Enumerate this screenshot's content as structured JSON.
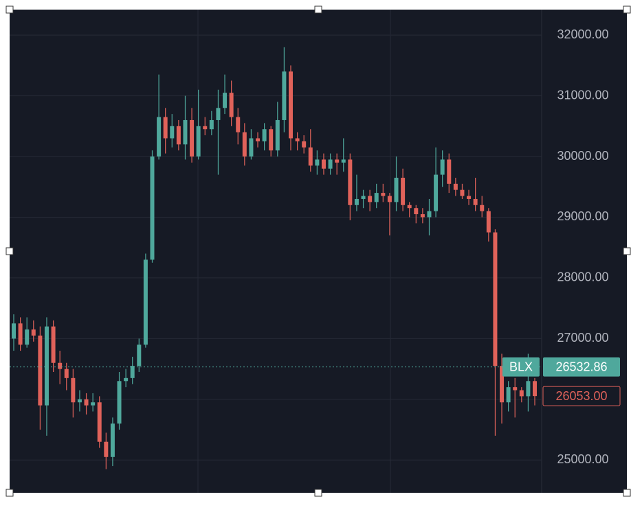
{
  "chart_data": {
    "type": "candlestick",
    "open": [
      27000,
      27250,
      26900,
      27150,
      27050,
      25900,
      27200,
      26600,
      26500,
      26350,
      25950,
      26000,
      25900,
      25950,
      25300,
      25050,
      25600,
      26300,
      26350,
      26550,
      26900,
      28300,
      30000,
      30650,
      30300,
      30500,
      30200,
      30600,
      30000,
      30500,
      30450,
      30600,
      30800,
      31050,
      30650,
      30400,
      30000,
      30300,
      30250,
      30450,
      30100,
      30600,
      31400,
      30300,
      30250,
      30150,
      29850,
      29950,
      29800,
      29950,
      29900,
      29950,
      29200,
      29300,
      29350,
      29250,
      29400,
      29350,
      29250,
      29650,
      29200,
      29150,
      29050,
      29000,
      29100,
      29700,
      29950,
      29550,
      29450,
      29350,
      29300,
      29200,
      29100,
      28750,
      26550,
      25950,
      26200,
      26150,
      26050,
      26300
    ],
    "high": [
      27400,
      27350,
      27350,
      27300,
      27200,
      27350,
      27300,
      26800,
      26600,
      26500,
      26150,
      26100,
      26100,
      26050,
      25450,
      25700,
      26450,
      26500,
      26700,
      27000,
      28400,
      30100,
      31350,
      30800,
      30700,
      30600,
      31000,
      30800,
      31100,
      30650,
      30750,
      31100,
      31350,
      31250,
      30800,
      30550,
      30450,
      30400,
      30550,
      30500,
      30900,
      31800,
      31500,
      30400,
      30350,
      30450,
      30100,
      30050,
      30050,
      30050,
      30300,
      30050,
      29700,
      29450,
      29450,
      29550,
      29550,
      29400,
      30000,
      29800,
      29250,
      29200,
      29150,
      29300,
      30150,
      30100,
      30050,
      29650,
      29550,
      29450,
      29650,
      29350,
      29150,
      28800,
      26750,
      26300,
      26350,
      26200,
      26750,
      26350
    ],
    "low": [
      26800,
      26800,
      26850,
      26950,
      25500,
      25400,
      26450,
      26250,
      26150,
      25700,
      25800,
      25750,
      25800,
      25200,
      24850,
      24900,
      25500,
      26200,
      26250,
      26450,
      26850,
      28250,
      29950,
      30050,
      30150,
      30100,
      29950,
      29900,
      29950,
      30350,
      30350,
      29700,
      30700,
      30500,
      30200,
      29850,
      29950,
      30150,
      30100,
      30000,
      30000,
      30400,
      30100,
      30100,
      30050,
      29750,
      29700,
      29700,
      29700,
      29700,
      29750,
      28950,
      29100,
      29150,
      29100,
      29150,
      29250,
      28700,
      29100,
      29100,
      29000,
      28900,
      28900,
      28700,
      29000,
      29500,
      29400,
      29350,
      29300,
      29200,
      29100,
      29000,
      28600,
      25400,
      25600,
      25800,
      25700,
      25950,
      25800,
      25900
    ],
    "close": [
      27250,
      26900,
      27150,
      27050,
      25900,
      27200,
      26600,
      26500,
      26350,
      25950,
      26000,
      25900,
      25950,
      25300,
      25050,
      25600,
      26300,
      26350,
      26550,
      26900,
      28300,
      30000,
      30650,
      30300,
      30500,
      30200,
      30600,
      30000,
      30500,
      30450,
      30600,
      30800,
      31050,
      30650,
      30400,
      30000,
      30300,
      30250,
      30450,
      30100,
      30600,
      31400,
      30300,
      30250,
      30150,
      29850,
      29950,
      29800,
      29950,
      29900,
      29950,
      29200,
      29300,
      29350,
      29250,
      29400,
      29350,
      29250,
      29650,
      29200,
      29150,
      29050,
      29000,
      29100,
      29700,
      29950,
      29550,
      29450,
      29350,
      29300,
      29200,
      29100,
      28750,
      26550,
      25950,
      26200,
      26150,
      26050,
      26300,
      26053
    ],
    "up_color": "#4fa89c",
    "down_color": "#e0625a",
    "ylim": [
      24460,
      32420
    ],
    "yticks": [
      {
        "value": 25000,
        "label": "25000.00"
      },
      {
        "value": 26000,
        "label": "26000.00"
      },
      {
        "value": 27000,
        "label": "27000.00"
      },
      {
        "value": 28000,
        "label": "28000.00"
      },
      {
        "value": 29000,
        "label": "29000.00"
      },
      {
        "value": 30000,
        "label": "30000.00"
      },
      {
        "value": 31000,
        "label": "31000.00"
      },
      {
        "value": 32000,
        "label": "32000.00"
      }
    ],
    "grid": true,
    "price_labels": [
      {
        "name": "BLX",
        "value": 26532.86,
        "color": "#4fa89c"
      },
      {
        "value": 26053,
        "label": "26053.00",
        "color": "#e0625a"
      }
    ]
  }
}
